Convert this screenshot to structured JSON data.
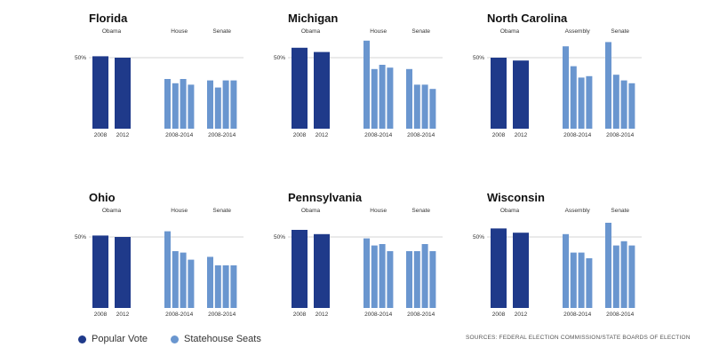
{
  "colors": {
    "popular": "#1f3a8a",
    "seats": "#6a96cf",
    "baseline": "#c8c8c8",
    "text": "#333333"
  },
  "legend": {
    "popular_vote": "Popular Vote",
    "statehouse_seats": "Statehouse Seats"
  },
  "source": "SOURCES: FEDERAL ELECTION COMMISSION/STATE BOARDS OF ELECTION",
  "chart_data": [
    {
      "type": "bar",
      "title": "Florida",
      "y_ref": "50%",
      "ylim": [
        0,
        80
      ],
      "groups": [
        {
          "name": "Obama",
          "kind": "popular",
          "labels": [
            "2008",
            "2012"
          ],
          "values": [
            51,
            50
          ]
        },
        {
          "name": "House",
          "kind": "seats",
          "range_label": "2008-2014",
          "values": [
            35,
            32,
            35,
            31
          ]
        },
        {
          "name": "Senate",
          "kind": "seats",
          "range_label": "2008-2014",
          "values": [
            34,
            29,
            34,
            34
          ]
        }
      ]
    },
    {
      "type": "bar",
      "title": "Michigan",
      "y_ref": "50%",
      "ylim": [
        0,
        80
      ],
      "groups": [
        {
          "name": "Obama",
          "kind": "popular",
          "labels": [
            "2008",
            "2012"
          ],
          "values": [
            57,
            54
          ]
        },
        {
          "name": "House",
          "kind": "seats",
          "range_label": "2008-2014",
          "values": [
            62,
            42,
            45,
            43
          ]
        },
        {
          "name": "Senate",
          "kind": "seats",
          "range_label": "2008-2014",
          "values": [
            42,
            31,
            31,
            28
          ]
        }
      ]
    },
    {
      "type": "bar",
      "title": "North Carolina",
      "y_ref": "50%",
      "ylim": [
        0,
        80
      ],
      "groups": [
        {
          "name": "Obama",
          "kind": "popular",
          "labels": [
            "2008",
            "2012"
          ],
          "values": [
            50,
            48
          ]
        },
        {
          "name": "Assembly",
          "kind": "seats",
          "range_label": "2008-2014",
          "values": [
            58,
            44,
            36,
            37
          ]
        },
        {
          "name": "Senate",
          "kind": "seats",
          "range_label": "2008-2014",
          "values": [
            61,
            38,
            34,
            32
          ]
        }
      ]
    },
    {
      "type": "bar",
      "title": "Ohio",
      "y_ref": "50%",
      "ylim": [
        0,
        80
      ],
      "groups": [
        {
          "name": "Obama",
          "kind": "popular",
          "labels": [
            "2008",
            "2012"
          ],
          "values": [
            51,
            50
          ]
        },
        {
          "name": "House",
          "kind": "seats",
          "range_label": "2008-2014",
          "values": [
            54,
            40,
            39,
            34
          ]
        },
        {
          "name": "Senate",
          "kind": "seats",
          "range_label": "2008-2014",
          "values": [
            36,
            30,
            30,
            30
          ]
        }
      ]
    },
    {
      "type": "bar",
      "title": "Pennsylvania",
      "y_ref": "50%",
      "ylim": [
        0,
        80
      ],
      "groups": [
        {
          "name": "Obama",
          "kind": "popular",
          "labels": [
            "2008",
            "2012"
          ],
          "values": [
            55,
            52
          ]
        },
        {
          "name": "House",
          "kind": "seats",
          "range_label": "2008-2014",
          "values": [
            49,
            44,
            45,
            40
          ]
        },
        {
          "name": "Senate",
          "kind": "seats",
          "range_label": "2008-2014",
          "values": [
            40,
            40,
            45,
            40
          ]
        }
      ]
    },
    {
      "type": "bar",
      "title": "Wisconsin",
      "y_ref": "50%",
      "ylim": [
        0,
        80
      ],
      "groups": [
        {
          "name": "Obama",
          "kind": "popular",
          "labels": [
            "2008",
            "2012"
          ],
          "values": [
            56,
            53
          ]
        },
        {
          "name": "Assembly",
          "kind": "seats",
          "range_label": "2008-2014",
          "values": [
            52,
            39,
            39,
            35
          ]
        },
        {
          "name": "Senate",
          "kind": "seats",
          "range_label": "2008-2014",
          "values": [
            60,
            44,
            47,
            44
          ]
        }
      ]
    }
  ]
}
